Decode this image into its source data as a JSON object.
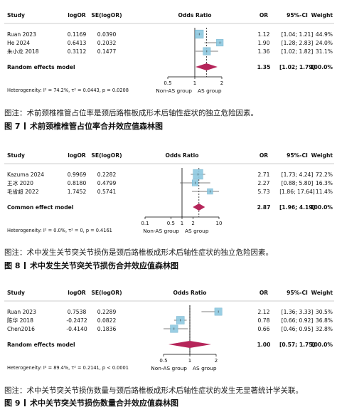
{
  "chart_data": [
    {
      "type": "forest",
      "header": {
        "study": "Study",
        "est": "logOR",
        "se": "SE(logOR)",
        "plot": "Odds Ratio",
        "or": "OR",
        "ci": "95%-CI",
        "weight": "Weight"
      },
      "studies": [
        {
          "name": "Ruan 2023",
          "est": "0.1169",
          "se": "0.0390",
          "or": 1.12,
          "lo": 1.04,
          "hi": 1.21,
          "or_text": "1.12",
          "ci_text": "[1.04; 1.21]",
          "weight_text": "44.9%",
          "weight": 44.9
        },
        {
          "name": "He 2024",
          "est": "0.6413",
          "se": "0.2032",
          "or": 1.9,
          "lo": 1.28,
          "hi": 2.83,
          "or_text": "1.90",
          "ci_text": "[1.28; 2.83]",
          "weight_text": "24.0%",
          "weight": 24.0
        },
        {
          "name": "朱小龙 2018",
          "est": "0.3112",
          "se": "0.1477",
          "or": 1.36,
          "lo": 1.02,
          "hi": 1.82,
          "or_text": "1.36",
          "ci_text": "[1.02; 1.82]",
          "weight_text": "31.1%",
          "weight": 31.1
        }
      ],
      "pooled": {
        "label": "Random effects model",
        "or": 1.35,
        "lo": 1.02,
        "hi": 1.79,
        "or_text": "1.35",
        "ci_text": "[1.02; 1.79]",
        "weight_text": "100.0%"
      },
      "heterogeneity": {
        "prefix": "Heterogeneity: ",
        "i2": "I² = 74.2%",
        "tau2": "τ² = 0.0443",
        "p": "p = 0.0208"
      },
      "xscale": "log",
      "xlim": [
        0.5,
        2
      ],
      "ticks": [
        0.5,
        1,
        2
      ],
      "tick_labels": [
        "0.5",
        "1",
        "2"
      ],
      "direction": {
        "left": "Non-AS group",
        "right": "AS group"
      },
      "note": "图注：术前颈椎椎管占位率是颈后路椎板成形术后轴性症状的独立危险因素。",
      "fig_num": "图 7",
      "fig_title": "术前颈椎椎管占位率合并效应值森林图"
    },
    {
      "type": "forest",
      "header": {
        "study": "Study",
        "est": "logOR",
        "se": "SE(logOR)",
        "plot": "Odds Ratio",
        "or": "OR",
        "ci": "95%-CI",
        "weight": "Weight"
      },
      "studies": [
        {
          "name": "Kazuma 2024",
          "est": "0.9969",
          "se": "0.2282",
          "or": 2.71,
          "lo": 1.73,
          "hi": 4.24,
          "or_text": "2.71",
          "ci_text": "[1.73; 4.24]",
          "weight_text": "72.2%",
          "weight": 72.2
        },
        {
          "name": "王冰 2020",
          "est": "0.8180",
          "se": "0.4799",
          "or": 2.27,
          "lo": 0.88,
          "hi": 5.8,
          "or_text": "2.27",
          "ci_text": "[0.88; 5.80]",
          "weight_text": "16.3%",
          "weight": 16.3
        },
        {
          "name": "毛省超 2022",
          "est": "1.7452",
          "se": "0.5741",
          "or": 5.73,
          "lo": 1.86,
          "hi": 17.64,
          "or_text": "5.73",
          "ci_text": "[1.86; 17.64]",
          "weight_text": "11.4%",
          "weight": 11.4
        }
      ],
      "pooled": {
        "label": "Common effect model",
        "or": 2.87,
        "lo": 1.96,
        "hi": 4.19,
        "or_text": "2.87",
        "ci_text": "[1.96; 4.19]",
        "weight_text": "100.0%"
      },
      "heterogeneity": {
        "prefix": "Heterogeneity: ",
        "i2": "I² = 0.0%",
        "tau2": "τ² = 0",
        "p": "p = 0.4161"
      },
      "xscale": "log",
      "xlim": [
        0.1,
        10
      ],
      "ticks": [
        0.1,
        0.5,
        1,
        2,
        10
      ],
      "tick_labels": [
        "0.1",
        "0.5",
        "1",
        "2",
        "10"
      ],
      "direction": {
        "left": "Non-AS group",
        "right": "AS group"
      },
      "note": "图注：术中发生关节突关节损伤是颈后路椎板成形术后轴性症状的独立危险因素。",
      "fig_num": "图 8",
      "fig_title": "术中发生关节突关节损伤合并效应值森林图"
    },
    {
      "type": "forest",
      "header": {
        "study": "Study",
        "est": "logOR",
        "se": "SE(logOR)",
        "plot": "Odds Ratio",
        "or": "OR",
        "ci": "95%-CI",
        "weight": "Weight"
      },
      "studies": [
        {
          "name": "Ruan 2023",
          "est": "0.7538",
          "se": "0.2289",
          "or": 2.12,
          "lo": 1.36,
          "hi": 3.33,
          "or_text": "2.12",
          "ci_text": "[1.36; 3.33]",
          "weight_text": "30.5%",
          "weight": 30.5
        },
        {
          "name": "陈华 2018",
          "est": "-0.2472",
          "se": "0.0822",
          "or": 0.78,
          "lo": 0.66,
          "hi": 0.92,
          "or_text": "0.78",
          "ci_text": "[0.66; 0.92]",
          "weight_text": "36.8%",
          "weight": 36.8
        },
        {
          "name": "Chen2016",
          "est": "-0.4140",
          "se": "0.1836",
          "or": 0.66,
          "lo": 0.46,
          "hi": 0.95,
          "or_text": "0.66",
          "ci_text": "[0.46; 0.95]",
          "weight_text": "32.8%",
          "weight": 32.8
        }
      ],
      "pooled": {
        "label": "Random effects model",
        "or": 1.0,
        "lo": 0.57,
        "hi": 1.75,
        "or_text": "1.00",
        "ci_text": "[0.57; 1.75]",
        "weight_text": "100.0%"
      },
      "heterogeneity": {
        "prefix": "Heterogeneity: ",
        "i2": "I² = 89.4%",
        "tau2": "τ² = 0.2141",
        "p": "p < 0.0001"
      },
      "xscale": "log",
      "xlim": [
        0.5,
        2
      ],
      "ticks": [
        0.5,
        1,
        2
      ],
      "tick_labels": [
        "0.5",
        "1",
        "2"
      ],
      "direction": {
        "left": "Non-AS group",
        "right": "AS group"
      },
      "note": "图注：术中关节突关节损伤数量与颈后路椎板成形术后轴性症状的发生无显著统计学关联。",
      "fig_num": "图 9",
      "fig_title": "术中关节突关节损伤数量合并效应值森林图"
    }
  ],
  "colors": {
    "box": "#8ec9e0",
    "box_edge": "#6aaecb",
    "diamond": "#b5255a",
    "line": "#000000",
    "ci": "#555555"
  }
}
